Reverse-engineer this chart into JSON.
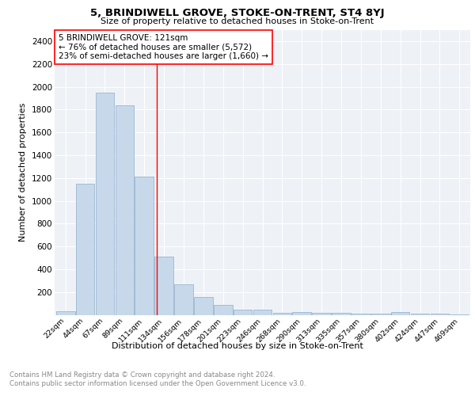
{
  "title": "5, BRINDIWELL GROVE, STOKE-ON-TRENT, ST4 8YJ",
  "subtitle": "Size of property relative to detached houses in Stoke-on-Trent",
  "xlabel": "Distribution of detached houses by size in Stoke-on-Trent",
  "ylabel": "Number of detached properties",
  "categories": [
    "22sqm",
    "44sqm",
    "67sqm",
    "89sqm",
    "111sqm",
    "134sqm",
    "156sqm",
    "178sqm",
    "201sqm",
    "223sqm",
    "246sqm",
    "268sqm",
    "290sqm",
    "313sqm",
    "335sqm",
    "357sqm",
    "380sqm",
    "402sqm",
    "424sqm",
    "447sqm",
    "469sqm"
  ],
  "values": [
    30,
    1150,
    1950,
    1840,
    1215,
    510,
    270,
    155,
    90,
    48,
    42,
    20,
    25,
    18,
    15,
    12,
    10,
    25,
    8,
    8,
    5
  ],
  "bar_color": "#c8d8eb",
  "bar_edge_color": "#8aadc8",
  "vline_x": 4.62,
  "vline_color": "red",
  "annotation_text": "5 BRINDIWELL GROVE: 121sqm\n← 76% of detached houses are smaller (5,572)\n23% of semi-detached houses are larger (1,660) →",
  "annotation_box_color": "white",
  "annotation_box_edge": "red",
  "ylim": [
    0,
    2500
  ],
  "yticks": [
    0,
    200,
    400,
    600,
    800,
    1000,
    1200,
    1400,
    1600,
    1800,
    2000,
    2200,
    2400
  ],
  "footer1": "Contains HM Land Registry data © Crown copyright and database right 2024.",
  "footer2": "Contains public sector information licensed under the Open Government Licence v3.0.",
  "plot_bg_color": "#eef2f7"
}
